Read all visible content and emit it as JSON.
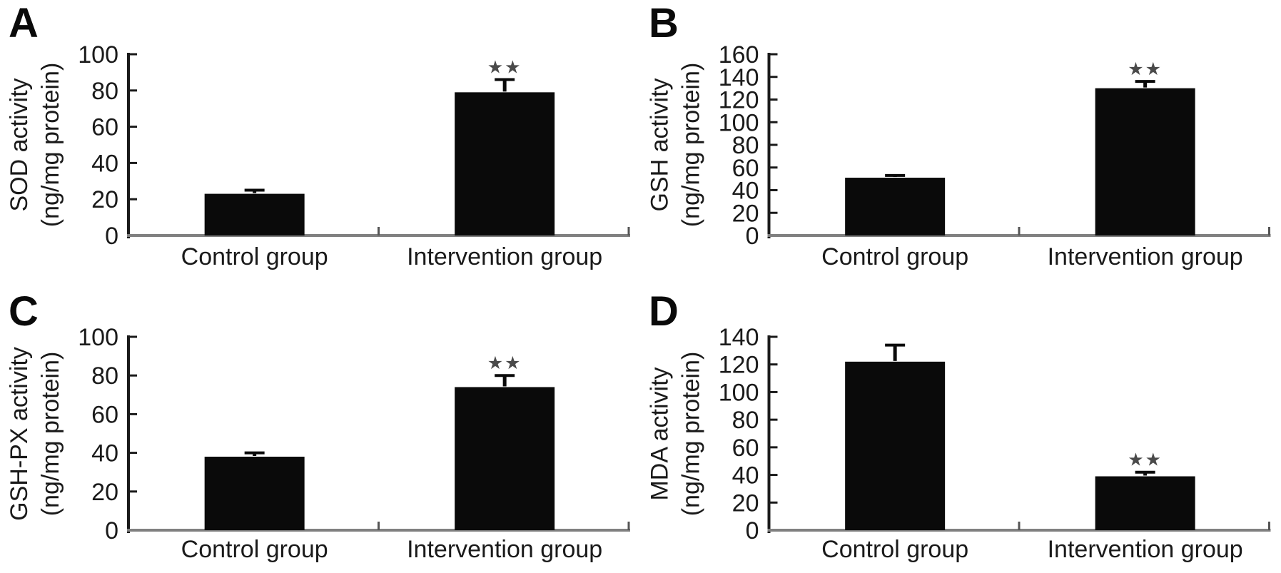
{
  "figure": {
    "background": "#ffffff",
    "panel_count": 4,
    "group_labels": [
      "Control group",
      "Intervention group"
    ]
  },
  "style": {
    "bar_color": "#0a0a0a",
    "y_axis_color": "#1a1a1a",
    "x_axis_color": "#808080",
    "x_tick_color": "#555555",
    "error_bar_color": "#0a0a0a",
    "text_color": "#1a1a1a",
    "significance_color": "#4a4a4a"
  },
  "chart_data": [
    {
      "type": "bar",
      "panel_label": "A",
      "ylabel_line1": "SOD activity",
      "ylabel_line2": "(ng/mg protein)",
      "categories": [
        "Control group",
        "Intervention group"
      ],
      "values": [
        23,
        79
      ],
      "errors": [
        2,
        7
      ],
      "significance": [
        "",
        "**"
      ],
      "ylim": [
        0,
        100
      ],
      "yticks": [
        0,
        20,
        40,
        60,
        80,
        100
      ],
      "grid": false,
      "legend": false
    },
    {
      "type": "bar",
      "panel_label": "B",
      "ylabel_line1": "GSH activity",
      "ylabel_line2": "(ng/mg protein)",
      "categories": [
        "Control group",
        "Intervention group"
      ],
      "values": [
        51,
        130
      ],
      "errors": [
        2,
        6
      ],
      "significance": [
        "",
        "**"
      ],
      "ylim": [
        0,
        160
      ],
      "yticks": [
        0,
        20,
        40,
        60,
        80,
        100,
        120,
        140,
        160
      ],
      "grid": false,
      "legend": false
    },
    {
      "type": "bar",
      "panel_label": "C",
      "ylabel_line1": "GSH-PX activity",
      "ylabel_line2": "(ng/mg protein)",
      "categories": [
        "Control group",
        "Intervention group"
      ],
      "values": [
        38,
        74
      ],
      "errors": [
        2,
        6
      ],
      "significance": [
        "",
        "**"
      ],
      "ylim": [
        0,
        100
      ],
      "yticks": [
        0,
        20,
        40,
        60,
        80,
        100
      ],
      "grid": false,
      "legend": false
    },
    {
      "type": "bar",
      "panel_label": "D",
      "ylabel_line1": "MDA activity",
      "ylabel_line2": "(ng/mg protein)",
      "categories": [
        "Control group",
        "Intervention group"
      ],
      "values": [
        122,
        39
      ],
      "errors": [
        12,
        3
      ],
      "significance": [
        "",
        "**"
      ],
      "ylim": [
        0,
        140
      ],
      "yticks": [
        0,
        20,
        40,
        60,
        80,
        100,
        120,
        140
      ],
      "grid": false,
      "legend": false
    }
  ]
}
